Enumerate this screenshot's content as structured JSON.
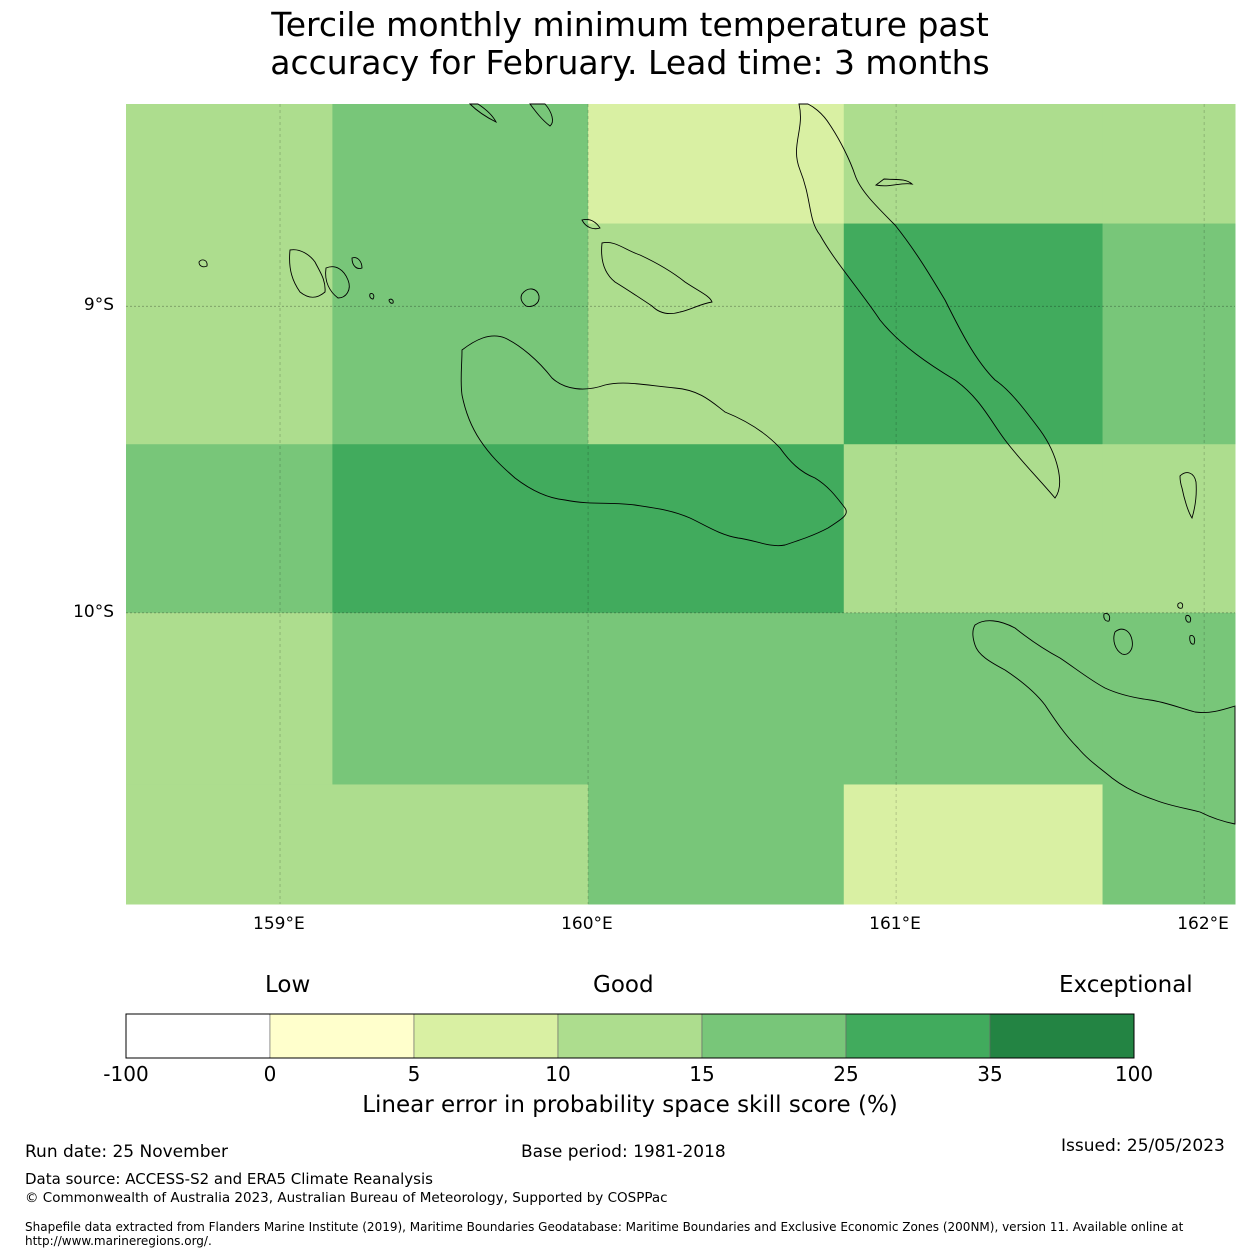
{
  "title": {
    "line1": "Tercile monthly minimum temperature past",
    "line2": "accuracy for February. Lead time: 3 months"
  },
  "map": {
    "lon_range": [
      158.5,
      162.1
    ],
    "lat_range": [
      -10.95,
      -8.34
    ],
    "lat_ticks": [
      {
        "lat": -9,
        "label": "9°S"
      },
      {
        "lat": -10,
        "label": "10°S"
      }
    ],
    "lon_ticks": [
      {
        "lon": 159,
        "label": "159°E"
      },
      {
        "lon": 160,
        "label": "160°E"
      },
      {
        "lon": 161,
        "label": "161°E"
      },
      {
        "lon": 162,
        "label": "162°E"
      }
    ],
    "grid_cells": {
      "lon_edges": [
        158.5,
        159.17,
        160.0,
        160.83,
        161.67,
        162.1
      ],
      "lat_edges": [
        -8.34,
        -8.73,
        -9.45,
        -10.0,
        -10.56,
        -10.95
      ],
      "category_by_row": [
        [
          3,
          4,
          2,
          3,
          3
        ],
        [
          3,
          4,
          3,
          5,
          4
        ],
        [
          4,
          5,
          5,
          3,
          3
        ],
        [
          3,
          4,
          4,
          4,
          4
        ],
        [
          3,
          3,
          4,
          2,
          4
        ]
      ]
    }
  },
  "colorbar": {
    "low_label": "Low",
    "good_label": "Good",
    "exceptional_label": "Exceptional",
    "colors": [
      "#ffffff",
      "#ffffcc",
      "#d9f0a3",
      "#addd8e",
      "#78c679",
      "#41ab5d",
      "#238443"
    ],
    "ticks": [
      "-100",
      "0",
      "5",
      "10",
      "15",
      "25",
      "35",
      "100"
    ],
    "title": "Linear error in probability space skill score (%)"
  },
  "footer": {
    "run_date": "Run date: 25 November",
    "base_period": "Base period: 1981-2018",
    "issued": "Issued: 25/05/2023",
    "data_source": "Data source: ACCESS-S2 and ERA5 Climate Reanalysis",
    "copyright": "© Commonwealth of Australia 2023, Australian Bureau of Meteorology, Supported by COSPPac",
    "shapefile": "Shapefile data extracted from Flanders Marine Institute (2019), Maritime Boundaries Geodatabase: Maritime Boundaries and Exclusive Economic Zones (200NM), version 11. Available online at http://www.marineregions.org/."
  }
}
